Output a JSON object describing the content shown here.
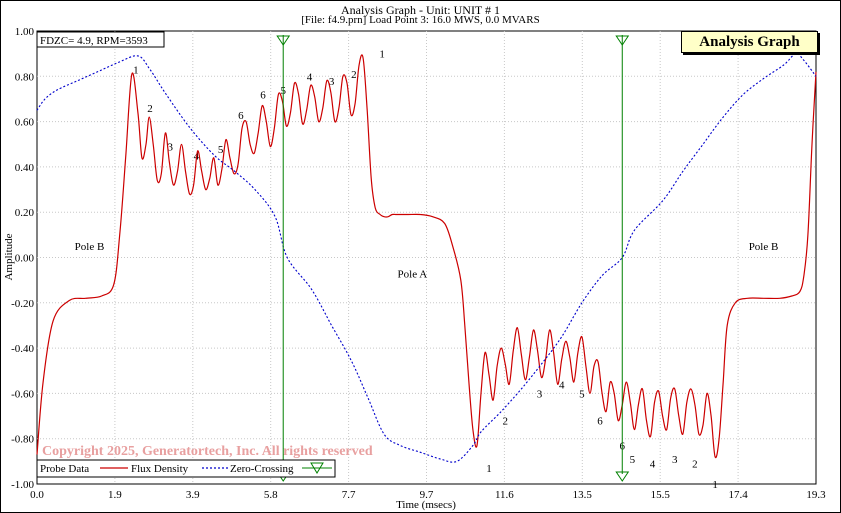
{
  "window": {
    "title": "Analysis Graph - Unit: UNIT # 1",
    "subtitle": "[File: f4.9.prn]  Load Point 3:  16.0 MWS,   0.0 MVARS",
    "tag": "Analysis Graph",
    "info_box": "FDZC= 4.9, RPM=3593",
    "copyright": "Copyright 2025, Generatortech, Inc. All rights reserved",
    "colors": {
      "flux": "#cc0000",
      "zero": "#0000cc",
      "marker": "#008000",
      "copyright": "#e8a0a0",
      "tag_bg": "#ffffc8"
    }
  },
  "legend": {
    "title": "Probe Data",
    "items": [
      {
        "label": "Flux Density",
        "style": "solid",
        "color": "#cc0000"
      },
      {
        "label": "Zero-Crossing",
        "style": "dotted",
        "color": "#0000cc"
      }
    ],
    "marker_symbol": "triangle-down"
  },
  "chart_data": {
    "type": "line",
    "xlabel": "Time (msecs)",
    "ylabel": "Amplitude",
    "xlim": [
      0.0,
      19.3
    ],
    "ylim": [
      -1.0,
      1.0
    ],
    "x_ticks": [
      "0.0",
      "1.9",
      "3.9",
      "5.8",
      "7.7",
      "9.7",
      "11.6",
      "13.5",
      "15.5",
      "17.4",
      "19.3"
    ],
    "x_tick_values": [
      0.0,
      1.93,
      3.86,
      5.79,
      7.72,
      9.65,
      11.58,
      13.51,
      15.44,
      17.37,
      19.3
    ],
    "y_ticks": [
      "1.00",
      "0.80",
      "0.60",
      "0.40",
      "0.20",
      "0.00",
      "-0.20",
      "-0.40",
      "-0.60",
      "-0.80",
      "-1.00"
    ],
    "y_tick_values": [
      1.0,
      0.8,
      0.6,
      0.4,
      0.2,
      0.0,
      -0.2,
      -0.4,
      -0.6,
      -0.8,
      -1.0
    ],
    "grid": true,
    "legend_position": "bottom-left",
    "series": [
      {
        "name": "Flux Density",
        "style": "solid",
        "x": [
          0.0,
          0.15,
          0.4,
          0.8,
          1.2,
          1.6,
          1.9,
          2.05,
          2.2,
          2.35,
          2.5,
          2.6,
          2.7,
          2.78,
          2.88,
          2.98,
          3.08,
          3.18,
          3.28,
          3.38,
          3.48,
          3.58,
          3.68,
          3.78,
          3.88,
          3.98,
          4.08,
          4.18,
          4.28,
          4.38,
          4.48,
          4.58,
          4.68,
          4.78,
          4.88,
          4.98,
          5.08,
          5.18,
          5.28,
          5.38,
          5.48,
          5.58,
          5.68,
          5.78,
          5.88,
          5.98,
          6.08,
          6.18,
          6.28,
          6.38,
          6.48,
          6.58,
          6.68,
          6.78,
          6.88,
          6.98,
          7.08,
          7.18,
          7.28,
          7.38,
          7.48,
          7.58,
          7.68,
          7.78,
          7.88,
          7.98,
          8.08,
          8.18,
          8.28,
          8.38,
          8.5,
          8.6,
          8.7,
          8.8,
          8.9,
          9.0,
          9.2,
          9.5,
          9.8,
          10.1,
          10.3,
          10.5,
          10.6,
          10.7,
          10.8,
          10.9,
          11.0,
          11.1,
          11.2,
          11.3,
          11.4,
          11.5,
          11.6,
          11.7,
          11.8,
          11.9,
          12.0,
          12.1,
          12.2,
          12.3,
          12.4,
          12.5,
          12.6,
          12.7,
          12.8,
          12.9,
          13.0,
          13.1,
          13.2,
          13.3,
          13.4,
          13.5,
          13.6,
          13.7,
          13.8,
          13.9,
          14.0,
          14.1,
          14.2,
          14.3,
          14.4,
          14.5,
          14.6,
          14.7,
          14.8,
          14.9,
          15.0,
          15.1,
          15.2,
          15.3,
          15.4,
          15.5,
          15.6,
          15.7,
          15.8,
          15.9,
          16.0,
          16.1,
          16.2,
          16.3,
          16.4,
          16.5,
          16.6,
          16.7,
          16.8,
          16.9,
          17.0,
          17.1,
          17.3,
          17.6,
          18.0,
          18.4,
          18.7,
          18.9,
          19.0,
          19.1,
          19.2,
          19.3
        ],
        "values": [
          -0.87,
          -0.55,
          -0.28,
          -0.19,
          -0.18,
          -0.17,
          -0.12,
          0.1,
          0.45,
          0.81,
          0.64,
          0.44,
          0.5,
          0.62,
          0.5,
          0.34,
          0.37,
          0.55,
          0.42,
          0.32,
          0.38,
          0.5,
          0.38,
          0.28,
          0.32,
          0.47,
          0.38,
          0.3,
          0.35,
          0.44,
          0.32,
          0.39,
          0.52,
          0.44,
          0.37,
          0.41,
          0.57,
          0.6,
          0.5,
          0.46,
          0.55,
          0.67,
          0.6,
          0.49,
          0.57,
          0.72,
          0.69,
          0.58,
          0.64,
          0.77,
          0.72,
          0.59,
          0.65,
          0.76,
          0.71,
          0.6,
          0.66,
          0.78,
          0.73,
          0.6,
          0.66,
          0.8,
          0.77,
          0.63,
          0.68,
          0.85,
          0.88,
          0.65,
          0.35,
          0.22,
          0.19,
          0.18,
          0.18,
          0.19,
          0.19,
          0.19,
          0.19,
          0.19,
          0.18,
          0.15,
          0.05,
          -0.1,
          -0.3,
          -0.55,
          -0.76,
          -0.83,
          -0.6,
          -0.42,
          -0.52,
          -0.63,
          -0.48,
          -0.4,
          -0.47,
          -0.56,
          -0.41,
          -0.31,
          -0.43,
          -0.54,
          -0.44,
          -0.32,
          -0.41,
          -0.53,
          -0.45,
          -0.32,
          -0.42,
          -0.56,
          -0.45,
          -0.37,
          -0.44,
          -0.55,
          -0.42,
          -0.35,
          -0.48,
          -0.6,
          -0.48,
          -0.46,
          -0.6,
          -0.68,
          -0.55,
          -0.6,
          -0.72,
          -0.65,
          -0.55,
          -0.64,
          -0.76,
          -0.65,
          -0.58,
          -0.72,
          -0.79,
          -0.64,
          -0.59,
          -0.7,
          -0.76,
          -0.62,
          -0.58,
          -0.7,
          -0.78,
          -0.64,
          -0.58,
          -0.65,
          -0.78,
          -0.74,
          -0.6,
          -0.7,
          -0.88,
          -0.8,
          -0.55,
          -0.3,
          -0.2,
          -0.18,
          -0.18,
          -0.18,
          -0.17,
          -0.15,
          -0.08,
          0.1,
          0.5,
          0.82
        ]
      },
      {
        "name": "Zero-Crossing",
        "style": "dotted",
        "x": [
          0.0,
          0.2,
          0.5,
          1.0,
          1.5,
          2.0,
          2.5,
          2.8,
          3.2,
          3.8,
          4.4,
          4.9,
          5.4,
          5.9,
          6.2,
          6.8,
          7.3,
          7.8,
          8.2,
          8.6,
          9.0,
          9.5,
          10.0,
          10.4,
          10.8,
          11.0,
          11.5,
          12.0,
          12.5,
          13.0,
          13.5,
          14.0,
          14.5,
          14.8,
          15.5,
          16.0,
          16.5,
          17.0,
          17.5,
          18.0,
          18.5,
          18.8,
          19.0,
          19.3
        ],
        "values": [
          0.65,
          0.7,
          0.74,
          0.78,
          0.82,
          0.86,
          0.89,
          0.83,
          0.72,
          0.57,
          0.45,
          0.38,
          0.3,
          0.18,
          0.0,
          -0.14,
          -0.3,
          -0.46,
          -0.62,
          -0.78,
          -0.83,
          -0.86,
          -0.89,
          -0.9,
          -0.83,
          -0.77,
          -0.68,
          -0.58,
          -0.47,
          -0.35,
          -0.2,
          -0.08,
          0.0,
          0.12,
          0.25,
          0.38,
          0.5,
          0.62,
          0.72,
          0.79,
          0.85,
          0.9,
          0.87,
          0.8
        ]
      }
    ],
    "marker_lines": [
      6.1,
      14.5
    ],
    "annotations": [
      {
        "text": "Pole B",
        "x": 1.3,
        "y": 0.05
      },
      {
        "text": "Pole A",
        "x": 9.3,
        "y": -0.07
      },
      {
        "text": "Pole B",
        "x": 18.0,
        "y": 0.05
      },
      {
        "text": "1",
        "x": 2.45,
        "y": 0.83
      },
      {
        "text": "2",
        "x": 2.8,
        "y": 0.66
      },
      {
        "text": "3",
        "x": 3.3,
        "y": 0.49
      },
      {
        "text": "4",
        "x": 3.95,
        "y": 0.45
      },
      {
        "text": "5",
        "x": 4.55,
        "y": 0.48
      },
      {
        "text": "6",
        "x": 5.05,
        "y": 0.63
      },
      {
        "text": "6",
        "x": 5.6,
        "y": 0.72
      },
      {
        "text": "5",
        "x": 6.1,
        "y": 0.74
      },
      {
        "text": "4",
        "x": 6.75,
        "y": 0.8
      },
      {
        "text": "3",
        "x": 7.3,
        "y": 0.78
      },
      {
        "text": "2",
        "x": 7.85,
        "y": 0.81
      },
      {
        "text": "1",
        "x": 8.55,
        "y": 0.9
      },
      {
        "text": "1",
        "x": 11.2,
        "y": -0.93
      },
      {
        "text": "2",
        "x": 11.6,
        "y": -0.72
      },
      {
        "text": "3",
        "x": 12.45,
        "y": -0.6
      },
      {
        "text": "4",
        "x": 13.0,
        "y": -0.56
      },
      {
        "text": "5",
        "x": 13.5,
        "y": -0.6
      },
      {
        "text": "6",
        "x": 13.95,
        "y": -0.72
      },
      {
        "text": "6",
        "x": 14.5,
        "y": -0.83
      },
      {
        "text": "5",
        "x": 14.75,
        "y": -0.89
      },
      {
        "text": "4",
        "x": 15.25,
        "y": -0.91
      },
      {
        "text": "3",
        "x": 15.8,
        "y": -0.89
      },
      {
        "text": "2",
        "x": 16.3,
        "y": -0.91
      },
      {
        "text": "1",
        "x": 16.8,
        "y": -1.0
      }
    ]
  }
}
